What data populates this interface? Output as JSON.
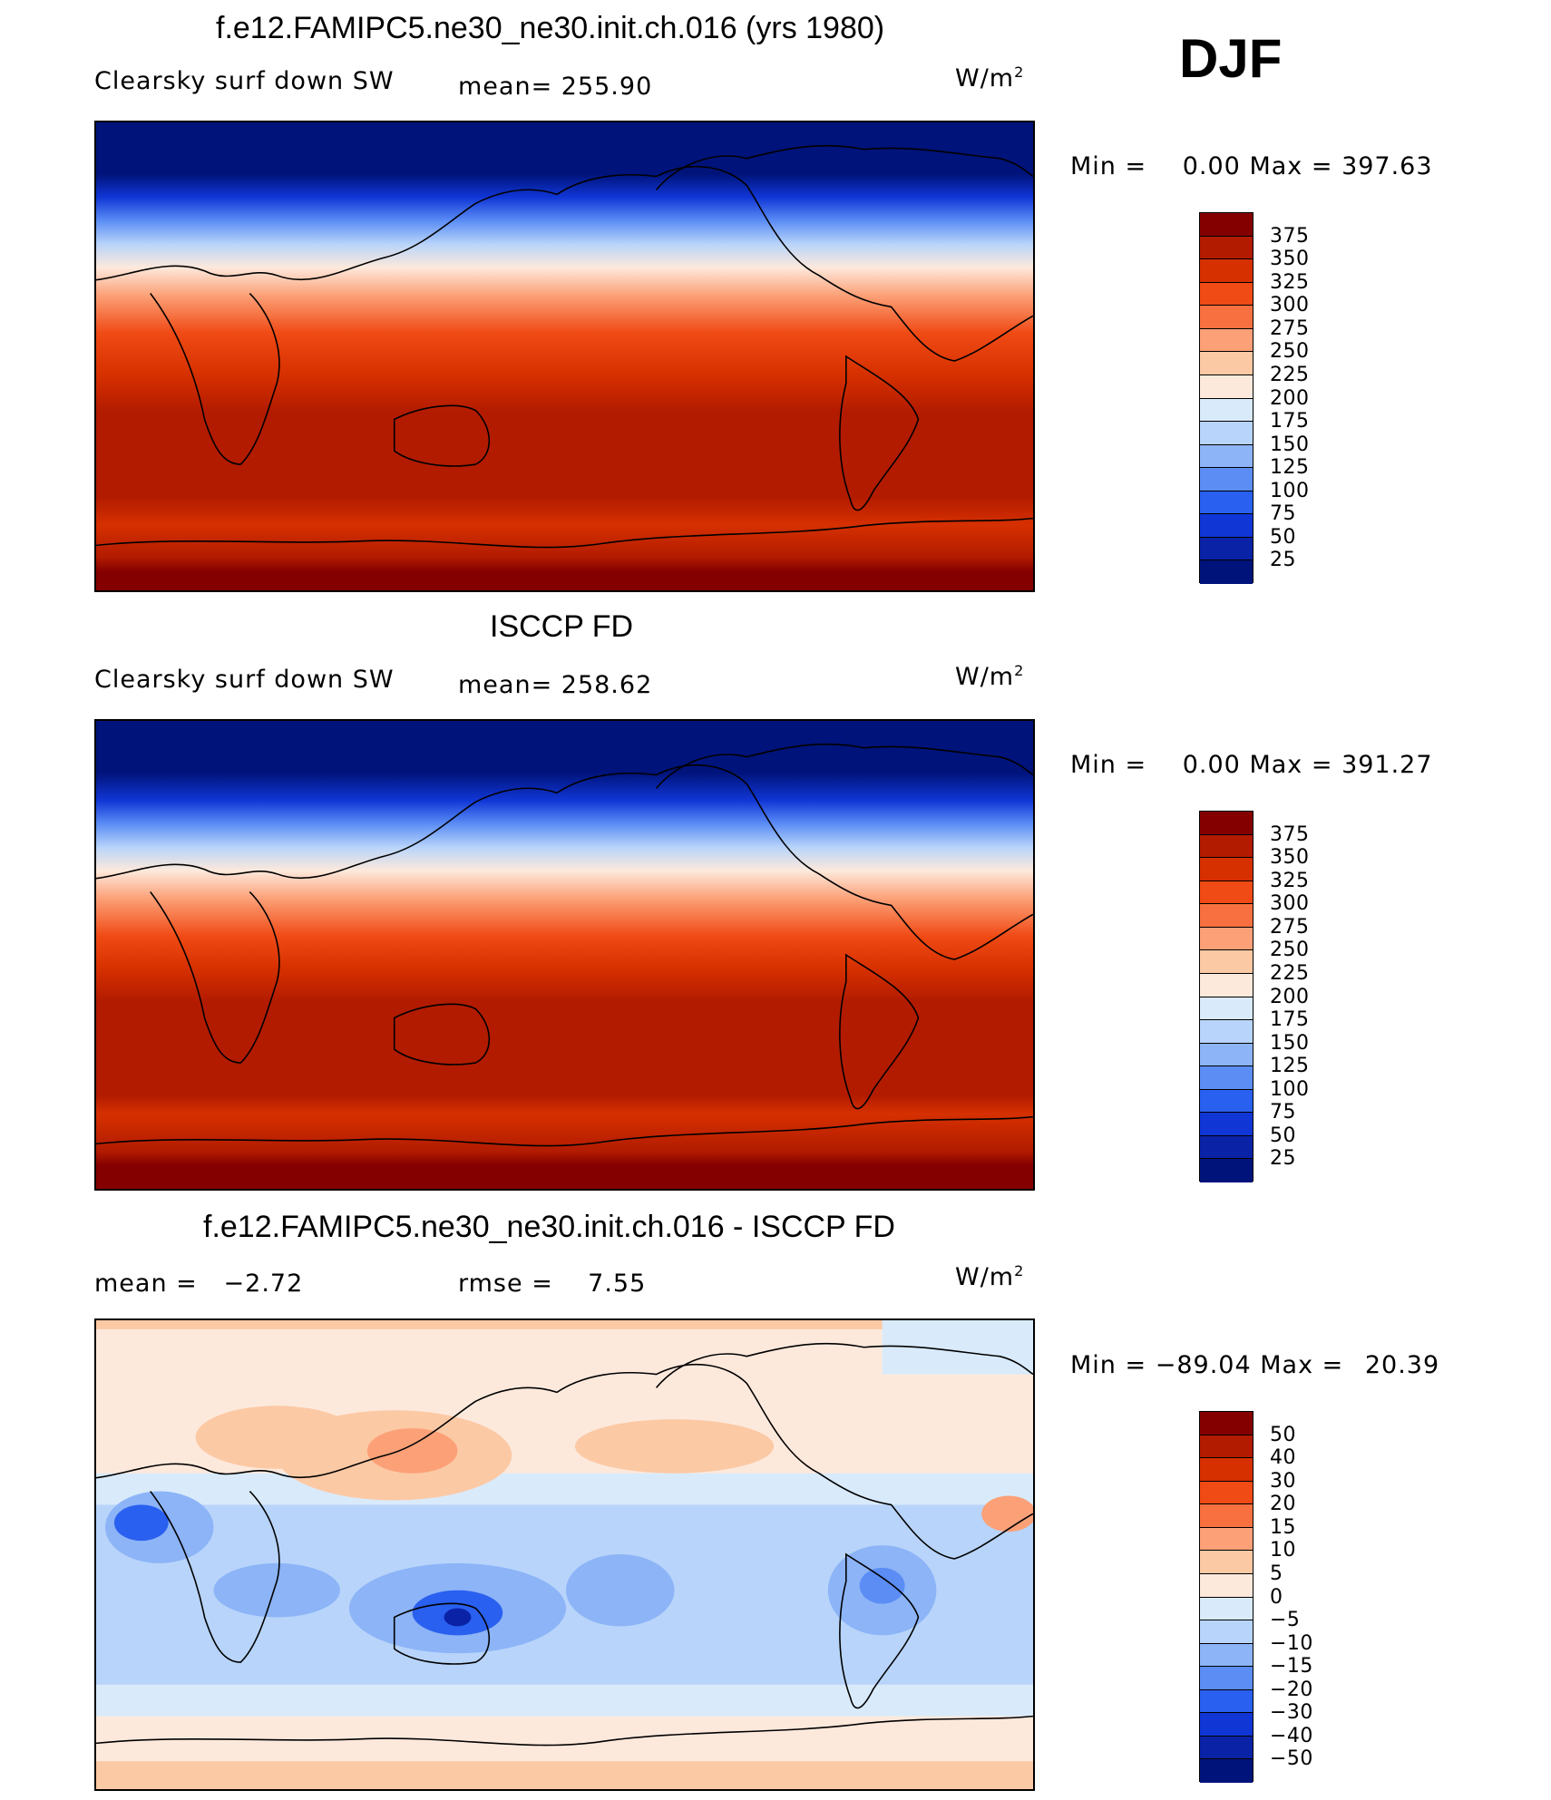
{
  "season": "DJF",
  "units_base": "W/m",
  "units_exp": "2",
  "panels": [
    {
      "title": "f.e12.FAMIPC5.ne30_ne30.init.ch.016 (yrs 1980)",
      "variable": "Clearsky surf down SW",
      "stat": "mean= 255.90",
      "min_label": "Min =",
      "min_value": "0.00",
      "max_label": "Max =",
      "max_value": "397.63",
      "colorbar": {
        "labels": [
          "375",
          "350",
          "325",
          "300",
          "275",
          "250",
          "225",
          "200",
          "175",
          "150",
          "125",
          "100",
          "75",
          "50",
          "25"
        ],
        "colors": [
          "#840000",
          "#b21b00",
          "#d63000",
          "#f04a15",
          "#f97040",
          "#fca077",
          "#fcc9a5",
          "#fde9dc",
          "#d9ebfb",
          "#b8d4fa",
          "#8cb4f7",
          "#5b8df5",
          "#2a60ef",
          "#1036d6",
          "#0a23a6",
          "#00137a"
        ]
      }
    },
    {
      "title": "ISCCP FD",
      "variable": "Clearsky surf down SW",
      "stat": "mean= 258.62",
      "min_label": "Min =",
      "min_value": "0.00",
      "max_label": "Max =",
      "max_value": "391.27",
      "colorbar": {
        "labels": [
          "375",
          "350",
          "325",
          "300",
          "275",
          "250",
          "225",
          "200",
          "175",
          "150",
          "125",
          "100",
          "75",
          "50",
          "25"
        ],
        "colors": [
          "#840000",
          "#b21b00",
          "#d63000",
          "#f04a15",
          "#f97040",
          "#fca077",
          "#fcc9a5",
          "#fde9dc",
          "#d9ebfb",
          "#b8d4fa",
          "#8cb4f7",
          "#5b8df5",
          "#2a60ef",
          "#1036d6",
          "#0a23a6",
          "#00137a"
        ]
      }
    },
    {
      "title": "f.e12.FAMIPC5.ne30_ne30.init.ch.016 - ISCCP FD",
      "stat_left": "mean =   −2.72",
      "stat": "rmse =    7.55",
      "min_label": "Min =",
      "min_value": "−89.04",
      "max_label": "Max =",
      "max_value": "20.39",
      "colorbar": {
        "labels": [
          "50",
          "40",
          "30",
          "20",
          "15",
          "10",
          "5",
          "0",
          "−5",
          "−10",
          "−15",
          "−20",
          "−30",
          "−40",
          "−50"
        ],
        "colors": [
          "#840000",
          "#b21b00",
          "#d63000",
          "#f04a15",
          "#f97040",
          "#fca077",
          "#fcc9a5",
          "#fde9dc",
          "#d9ebfb",
          "#b8d4fa",
          "#8cb4f7",
          "#5b8df5",
          "#2a60ef",
          "#1036d6",
          "#0a23a6",
          "#00137a"
        ]
      }
    }
  ]
}
